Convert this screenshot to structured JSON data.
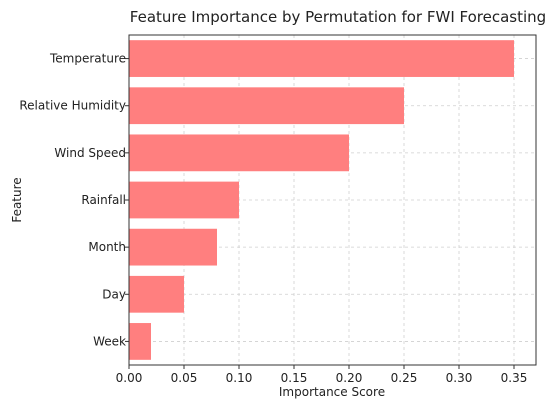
{
  "chart_data": {
    "type": "bar",
    "orientation": "horizontal",
    "title": "Feature Importance by Permutation for FWI Forecasting",
    "xlabel": "Importance Score",
    "ylabel": "Feature",
    "categories": [
      "Temperature",
      "Relative Humidity",
      "Wind Speed",
      "Rainfall",
      "Month",
      "Day",
      "Week"
    ],
    "values": [
      0.35,
      0.25,
      0.2,
      0.1,
      0.08,
      0.05,
      0.02
    ],
    "xlim": [
      0.0,
      0.37
    ],
    "xticks": [
      "0.00",
      "0.05",
      "0.10",
      "0.15",
      "0.20",
      "0.25",
      "0.30",
      "0.35"
    ],
    "grid": true,
    "bar_color": "#ff7f7f"
  }
}
